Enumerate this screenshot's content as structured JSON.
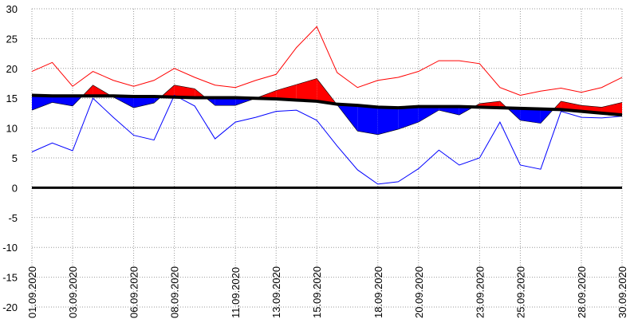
{
  "chart_data": {
    "type": "temperature-band",
    "x": [
      1,
      2,
      3,
      4,
      5,
      6,
      7,
      8,
      9,
      10,
      11,
      12,
      13,
      14,
      15,
      16,
      17,
      18,
      19,
      20,
      21,
      22,
      23,
      24,
      25,
      26,
      27,
      28,
      29,
      30
    ],
    "xlim": [
      1,
      30
    ],
    "xticks": [
      {
        "value": 1,
        "label": "01.09.2020"
      },
      {
        "value": 3,
        "label": "03.09.2020"
      },
      {
        "value": 6,
        "label": "06.09.2020"
      },
      {
        "value": 8,
        "label": "08.09.2020"
      },
      {
        "value": 11,
        "label": "11.09.2020"
      },
      {
        "value": 13,
        "label": "13.09.2020"
      },
      {
        "value": 15,
        "label": "15.09.2020"
      },
      {
        "value": 18,
        "label": "18.09.2020"
      },
      {
        "value": 20,
        "label": "20.09.2020"
      },
      {
        "value": 23,
        "label": "23.09.2020"
      },
      {
        "value": 25,
        "label": "25.09.2020"
      },
      {
        "value": 28,
        "label": "28.09.2020"
      },
      {
        "value": 30,
        "label": "30.09.2020"
      }
    ],
    "ylim": [
      -20,
      30
    ],
    "yticks": [
      -20,
      -15,
      -10,
      -5,
      0,
      5,
      10,
      15,
      20,
      25,
      30
    ],
    "grid": true,
    "series": [
      {
        "role": "max",
        "color": "#ff0000",
        "values": [
          19.5,
          21,
          17,
          19.5,
          18,
          17,
          18,
          20,
          18.5,
          17.2,
          16.8,
          18,
          19,
          23.5,
          27,
          19.3,
          16.8,
          18,
          18.5,
          19.5,
          21.3,
          21.3,
          20.8,
          16.8,
          15.5,
          16.2,
          16.7,
          16,
          16.8,
          18.5
        ]
      },
      {
        "role": "min",
        "color": "#0000ff",
        "values": [
          6,
          7.5,
          6.2,
          15,
          11.8,
          8.8,
          8,
          15.5,
          13.7,
          8.2,
          11,
          11.8,
          12.8,
          13,
          11.3,
          7,
          3,
          0.6,
          1,
          3.2,
          6.3,
          3.8,
          5,
          11,
          3.8,
          3.1,
          12.8,
          11.8,
          11.7,
          12
        ]
      },
      {
        "role": "norm",
        "color": "#000000",
        "values": [
          15.5,
          15.4,
          15.4,
          15.4,
          15.4,
          15.3,
          15.3,
          15.2,
          15.1,
          15.1,
          15.1,
          15,
          14.9,
          14.7,
          14.5,
          14,
          13.8,
          13.5,
          13.4,
          13.6,
          13.6,
          13.6,
          13.5,
          13.4,
          13.3,
          13.2,
          13.1,
          12.8,
          12.5,
          12.2
        ]
      },
      {
        "role": "mean",
        "color": "#000000",
        "above_color": "#ff0000",
        "below_color": "#0000ff",
        "values": [
          13,
          14.3,
          13.7,
          17.2,
          15.2,
          13.4,
          14.2,
          17.2,
          16.6,
          13.8,
          13.8,
          15,
          16.3,
          17.3,
          18.3,
          13.9,
          9.5,
          8.9,
          9.8,
          11,
          13,
          12.2,
          14.1,
          14.5,
          11.3,
          10.8,
          14.5,
          13.8,
          13.5,
          14.3
        ]
      }
    ]
  }
}
